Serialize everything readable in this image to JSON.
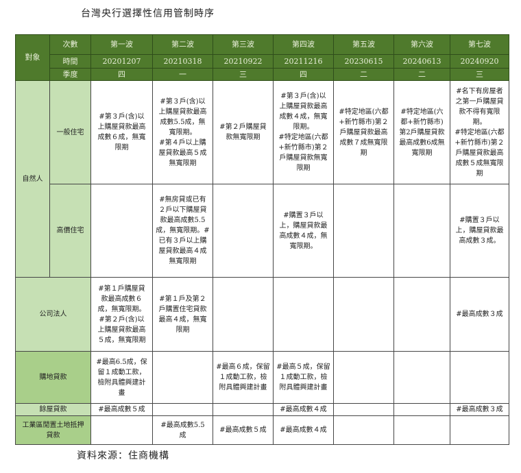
{
  "title": "台灣央行選擇性信用管制時序",
  "source": "資料來源：住商機構",
  "header": {
    "target_label": "對象",
    "row_labels": [
      "次數",
      "時間",
      "季度"
    ],
    "waves": [
      {
        "name": "第一波",
        "date": "20201207",
        "quarter": "四"
      },
      {
        "name": "第二波",
        "date": "20210318",
        "quarter": "一"
      },
      {
        "name": "第三波",
        "date": "20210922",
        "quarter": "三"
      },
      {
        "name": "第四波",
        "date": "20211216",
        "quarter": "四"
      },
      {
        "name": "第五波",
        "date": "20230615",
        "quarter": "二"
      },
      {
        "name": "第六波",
        "date": "20240613",
        "quarter": "二"
      },
      {
        "name": "第七波",
        "date": "20240920",
        "quarter": "三"
      }
    ]
  },
  "colors": {
    "header_bg": "#4f7a2c",
    "row_head_light": "#c6e0b4",
    "row_head_dark": "#a9cf8a"
  },
  "rows": [
    {
      "group": "自然人",
      "label": "一般住宅",
      "cells": [
        "#第３戶(含)以\n上購屋貸款最高\n成數６成，無寬\n限期",
        "#第３戶(含)以\n上購屋貸款最高\n成數5.5成，無\n寬限期。\n#第４戶以上購\n屋貸款最高５成\n無寬限期",
        "#第２戶購屋貸\n款無寬限期",
        "#第３戶(含)以\n上購屋貸款最高\n成數４成，無寬\n限期。\n#特定地區(六都\n+新竹縣市)第２\n戶購屋貸款無寬\n限期",
        "#特定地區(六都\n+新竹縣市)第２\n戶購屋貸款最高\n成數７成無寬限\n期",
        "#特定地區(六\n都+新竹縣市)\n第2戶購屋貸款\n最高成數6成無\n寬限期",
        "#名下有房屋者\n之第一戶購屋貸\n款不得有寬限\n期。\n#特定地區(六都\n+新竹縣市)第２\n戶購屋貸款最高\n成數５成無寬限\n期"
      ]
    },
    {
      "label": "高價住宅",
      "cells": [
        "",
        "#無房貸或已有\n２戶以下購屋貸\n款最高成數5.5\n成，無寬限期。#\n已有３戶以上購\n屋貸款最高４成\n無寬限期",
        "",
        "#購置３戶以\n上，購屋貸款最\n高成數４成，無\n寬限期。",
        "",
        "",
        "#購置３戶以\n上，購屋貸款最\n高成數３成。"
      ]
    },
    {
      "label": "公司法人",
      "cells": [
        "#第１戶購屋貸\n款最高成數６\n成，無寬限期。\n#第２戶(含)以\n上購屋貸款最高\n５成，無寬限期",
        "#第１戶及第２\n戶購置住宅貸款\n最高４成，無寬\n限期",
        "",
        "",
        "",
        "",
        "#最高成數３成"
      ]
    },
    {
      "label": "購地貸款",
      "cells": [
        "#最高6.5成，保\n留１成動工款，\n檢附具體興建計\n畫",
        "",
        "#最高６成，保留\n１成動工款，檢\n附具體興建計畫",
        "#最高５成，保留\n１成動工款，檢\n附具體興建計畫",
        "",
        "",
        ""
      ]
    },
    {
      "label": "餘屋貸款",
      "cells": [
        "#最高成數５成",
        "",
        "",
        "#最高成數４成",
        "",
        "",
        "#最高成數３成"
      ]
    },
    {
      "label": "工業區閒置土地抵押\n貸款",
      "cells": [
        "",
        "#最高成數5.5\n成",
        "#最高成數５成",
        "#最高成數４成",
        "",
        "",
        ""
      ]
    }
  ]
}
